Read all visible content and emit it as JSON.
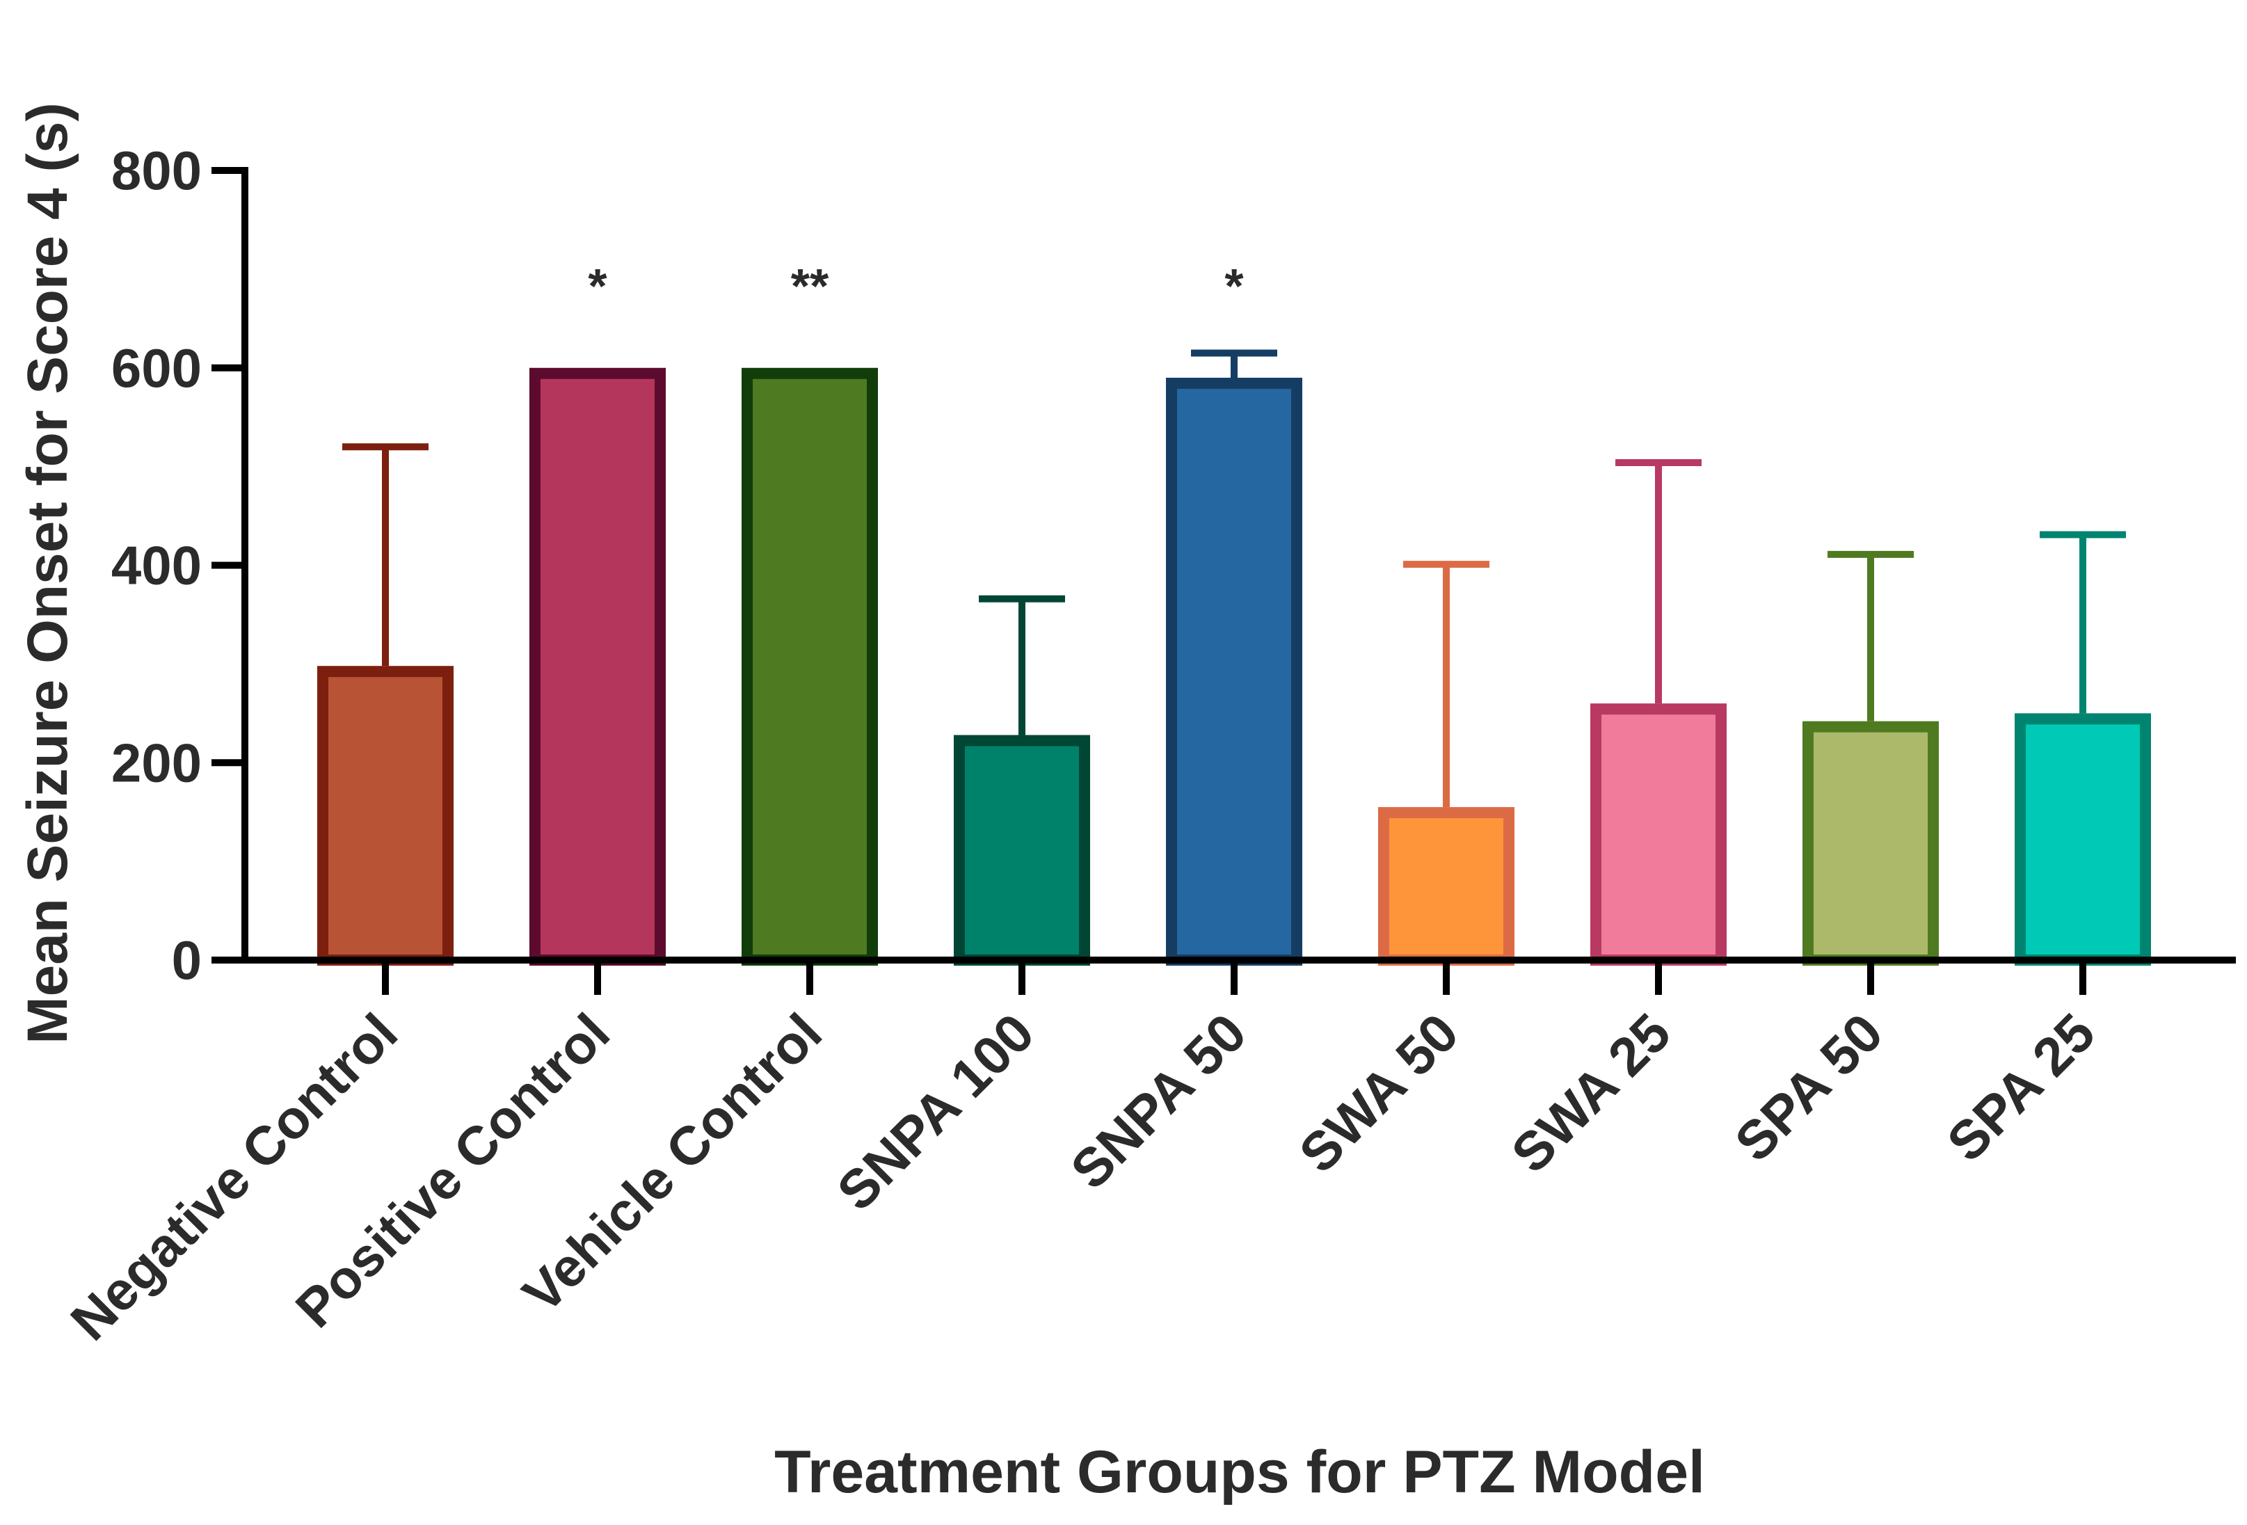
{
  "chart_data": {
    "type": "bar",
    "x_label": "Treatment Groups for PTZ Model",
    "y_label": "Mean Seizure Onset for Score 4  (s)",
    "categories": [
      "Negative Control",
      "Positive Control",
      "Vehicle Control",
      "SNPA 100",
      "SNPA 50",
      "SWA 50",
      "SWA 25",
      "SPA 50",
      "SPA 25"
    ],
    "values": [
      298,
      600,
      600,
      228,
      590,
      155,
      260,
      242,
      250
    ],
    "errors": [
      222,
      null,
      null,
      138,
      25,
      246,
      244,
      169,
      181
    ],
    "significance": [
      null,
      "*",
      "**",
      null,
      "*",
      null,
      null,
      null,
      null
    ],
    "colors": [
      "#b85335",
      "#b5365c",
      "#4e7a21",
      "#00826a",
      "#2567a0",
      "#fe953a",
      "#f07b9a",
      "#adb96a",
      "#00c9b5"
    ],
    "edge_colors": [
      "#7d1f0f",
      "#5c0b2e",
      "#113d0b",
      "#014634",
      "#153d63",
      "#dc6b45",
      "#b83a62",
      "#4f7a20",
      "#008470"
    ],
    "ylim": [
      0,
      800
    ],
    "yticks": [
      0,
      200,
      400,
      600,
      800
    ],
    "grid": false
  }
}
